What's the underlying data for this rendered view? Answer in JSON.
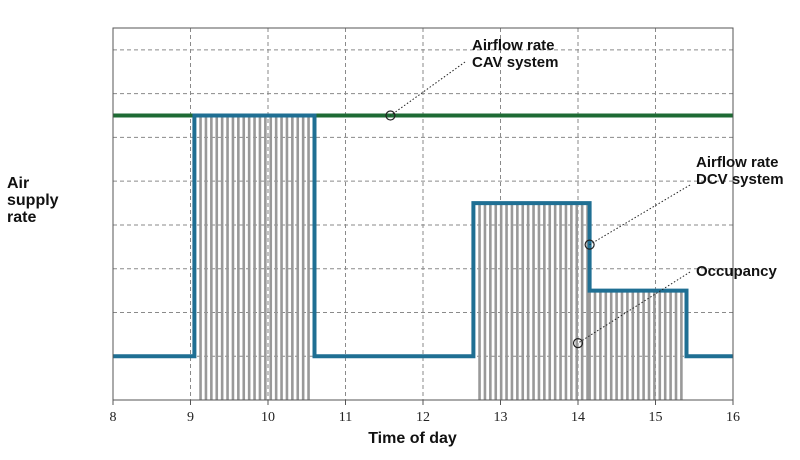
{
  "chart_data": {
    "type": "line",
    "xlabel": "Time of day",
    "ylabel_lines": [
      "Air",
      "supply",
      "rate"
    ],
    "xlim": [
      8,
      16
    ],
    "ylim": [
      0,
      8.5
    ],
    "x_ticks": [
      8,
      9,
      10,
      11,
      12,
      13,
      14,
      15,
      16
    ],
    "grid": true,
    "series": [
      {
        "key": "cav",
        "color": "#1e6b34",
        "points": [
          [
            8,
            6.5
          ],
          [
            16,
            6.5
          ]
        ]
      },
      {
        "key": "dcv",
        "color": "#1f6f93",
        "points": [
          [
            8,
            1
          ],
          [
            9.05,
            1
          ],
          [
            9.05,
            6.5
          ],
          [
            10.6,
            6.5
          ],
          [
            10.6,
            1
          ],
          [
            12.65,
            1
          ],
          [
            12.65,
            4.5
          ],
          [
            14.15,
            4.5
          ],
          [
            14.15,
            2.5
          ],
          [
            15.4,
            2.5
          ],
          [
            15.4,
            1
          ],
          [
            16,
            1
          ]
        ]
      },
      {
        "key": "occupancy",
        "color": "#999999",
        "hatched": true,
        "blocks": [
          {
            "x0": 9.1,
            "x1": 10.55,
            "y": 6.5
          },
          {
            "x0": 12.7,
            "x1": 14.12,
            "y": 4.5
          },
          {
            "x0": 14.12,
            "x1": 15.35,
            "y": 2.5
          }
        ]
      }
    ],
    "annotations": [
      {
        "lines": [
          "Airflow rate",
          "CAV system"
        ],
        "target": [
          11.58,
          6.5
        ]
      },
      {
        "lines": [
          "Airflow rate",
          "DCV system"
        ],
        "target": [
          14.15,
          3.55
        ]
      },
      {
        "lines": [
          "Occupancy"
        ],
        "target": [
          14.0,
          1.3
        ]
      }
    ]
  }
}
